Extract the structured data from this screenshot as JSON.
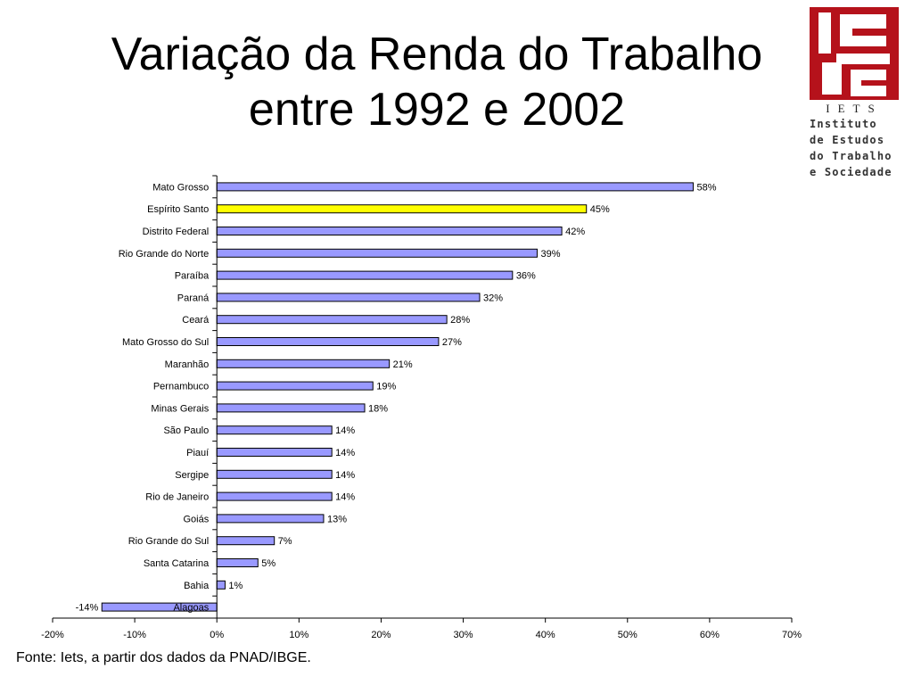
{
  "title_lines": [
    "Variação da Renda do Trabalho",
    "entre 1992 e 2002"
  ],
  "source": "Fonte: Iets, a partir dos dados da PNAD/IBGE.",
  "logo": {
    "acronym": "IETS",
    "lines": [
      "Instituto",
      "de Estudos",
      "do Trabalho",
      "e Sociedade"
    ],
    "color": "#b5121b"
  },
  "chart_data": {
    "type": "bar",
    "orientation": "horizontal",
    "categories": [
      "Mato Grosso",
      "Espírito Santo",
      "Distrito Federal",
      "Rio Grande do Norte",
      "Paraíba",
      "Paraná",
      "Ceará",
      "Mato Grosso do Sul",
      "Maranhão",
      "Pernambuco",
      "Minas Gerais",
      "São Paulo",
      "Piauí",
      "Sergipe",
      "Rio de Janeiro",
      "Goiás",
      "Rio Grande do Sul",
      "Santa Catarina",
      "Bahia",
      "Alagoas"
    ],
    "values": [
      58,
      45,
      42,
      39,
      36,
      32,
      28,
      27,
      21,
      19,
      18,
      14,
      14,
      14,
      14,
      13,
      7,
      5,
      1,
      -14
    ],
    "labels": [
      "58%",
      "45%",
      "42%",
      "39%",
      "36%",
      "32%",
      "28%",
      "27%",
      "21%",
      "19%",
      "18%",
      "14%",
      "14%",
      "14%",
      "14%",
      "13%",
      "7%",
      "5%",
      "1%",
      "-14%"
    ],
    "highlight": "Espírito Santo",
    "xlim": [
      -20,
      70
    ],
    "xticks": [
      -20,
      -10,
      0,
      10,
      20,
      30,
      40,
      50,
      60,
      70
    ],
    "xtick_labels": [
      "-20%",
      "-10%",
      "0%",
      "10%",
      "20%",
      "30%",
      "40%",
      "50%",
      "60%",
      "70%"
    ],
    "bar_color": "#9999ff",
    "highlight_color": "#ffff00",
    "grid": false,
    "legend": "none"
  }
}
